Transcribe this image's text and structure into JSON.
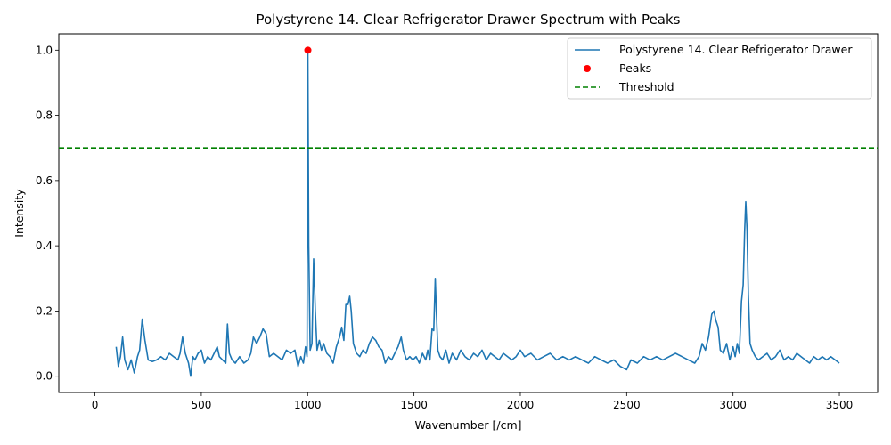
{
  "chart_data": {
    "type": "line",
    "title": "Polystyrene 14. Clear Refrigerator Drawer Spectrum with Peaks",
    "xlabel": "Wavenumber [/cm]",
    "ylabel": "Intensity",
    "xlim": [
      -170,
      3680
    ],
    "ylim": [
      -0.05,
      1.05
    ],
    "xticks": [
      0,
      500,
      1000,
      1500,
      2000,
      2500,
      3000,
      3500
    ],
    "yticks": [
      0.0,
      0.2,
      0.4,
      0.6,
      0.8,
      1.0
    ],
    "xtick_labels": [
      "0",
      "500",
      "1000",
      "1500",
      "2000",
      "2500",
      "3000",
      "3500"
    ],
    "ytick_labels": [
      "0.0",
      "0.2",
      "0.4",
      "0.6",
      "0.8",
      "1.0"
    ],
    "grid": false,
    "legend_position": "top-right",
    "colors": {
      "spectrum": "#1f77b4",
      "peaks": "#ff0000",
      "threshold": "#008000"
    },
    "series": [
      {
        "name": "Polystyrene 14. Clear Refrigerator Drawer",
        "kind": "line",
        "x": [
          100,
          110,
          120,
          130,
          140,
          155,
          170,
          185,
          200,
          210,
          222,
          235,
          250,
          270,
          290,
          310,
          330,
          350,
          370,
          390,
          400,
          412,
          425,
          440,
          450,
          460,
          470,
          485,
          500,
          515,
          530,
          545,
          560,
          575,
          585,
          600,
          615,
          623,
          632,
          645,
          660,
          680,
          700,
          720,
          733,
          745,
          760,
          775,
          790,
          805,
          820,
          840,
          860,
          880,
          900,
          920,
          940,
          955,
          968,
          980,
          990,
          997,
          1001,
          1005,
          1012,
          1020,
          1028,
          1036,
          1044,
          1055,
          1065,
          1075,
          1090,
          1105,
          1120,
          1135,
          1150,
          1160,
          1170,
          1180,
          1190,
          1198,
          1205,
          1215,
          1230,
          1245,
          1260,
          1275,
          1290,
          1305,
          1320,
          1335,
          1350,
          1365,
          1380,
          1395,
          1410,
          1425,
          1440,
          1450,
          1465,
          1480,
          1495,
          1510,
          1525,
          1540,
          1555,
          1565,
          1575,
          1585,
          1593,
          1600,
          1605,
          1612,
          1622,
          1635,
          1650,
          1665,
          1680,
          1700,
          1720,
          1740,
          1760,
          1780,
          1800,
          1820,
          1840,
          1860,
          1880,
          1900,
          1920,
          1940,
          1960,
          1980,
          2000,
          2020,
          2050,
          2080,
          2110,
          2140,
          2170,
          2200,
          2230,
          2260,
          2290,
          2320,
          2350,
          2380,
          2410,
          2440,
          2470,
          2500,
          2520,
          2550,
          2580,
          2610,
          2640,
          2670,
          2700,
          2730,
          2760,
          2790,
          2820,
          2840,
          2855,
          2870,
          2885,
          2900,
          2910,
          2920,
          2930,
          2940,
          2955,
          2970,
          2985,
          3000,
          3010,
          3020,
          3030,
          3040,
          3048,
          3055,
          3060,
          3066,
          3072,
          3080,
          3090,
          3105,
          3120,
          3140,
          3160,
          3180,
          3200,
          3220,
          3240,
          3260,
          3280,
          3300,
          3320,
          3340,
          3360,
          3380,
          3400,
          3420,
          3440,
          3460,
          3480,
          3500
        ],
        "y": [
          0.09,
          0.03,
          0.06,
          0.12,
          0.05,
          0.02,
          0.05,
          0.01,
          0.06,
          0.08,
          0.175,
          0.11,
          0.05,
          0.045,
          0.05,
          0.06,
          0.05,
          0.07,
          0.06,
          0.05,
          0.07,
          0.12,
          0.07,
          0.04,
          0.0,
          0.06,
          0.05,
          0.07,
          0.08,
          0.04,
          0.06,
          0.05,
          0.07,
          0.09,
          0.06,
          0.05,
          0.04,
          0.16,
          0.07,
          0.05,
          0.04,
          0.06,
          0.04,
          0.05,
          0.07,
          0.12,
          0.1,
          0.12,
          0.145,
          0.13,
          0.06,
          0.07,
          0.06,
          0.05,
          0.08,
          0.07,
          0.08,
          0.03,
          0.06,
          0.04,
          0.09,
          0.06,
          1.0,
          0.4,
          0.08,
          0.1,
          0.36,
          0.2,
          0.08,
          0.11,
          0.08,
          0.1,
          0.07,
          0.06,
          0.04,
          0.09,
          0.12,
          0.15,
          0.11,
          0.22,
          0.22,
          0.245,
          0.2,
          0.1,
          0.07,
          0.06,
          0.08,
          0.07,
          0.1,
          0.12,
          0.11,
          0.09,
          0.08,
          0.04,
          0.06,
          0.05,
          0.07,
          0.09,
          0.12,
          0.08,
          0.05,
          0.06,
          0.05,
          0.06,
          0.04,
          0.07,
          0.05,
          0.08,
          0.05,
          0.145,
          0.14,
          0.3,
          0.2,
          0.08,
          0.06,
          0.05,
          0.08,
          0.04,
          0.07,
          0.05,
          0.08,
          0.06,
          0.05,
          0.07,
          0.06,
          0.08,
          0.05,
          0.07,
          0.06,
          0.05,
          0.07,
          0.06,
          0.05,
          0.06,
          0.08,
          0.06,
          0.07,
          0.05,
          0.06,
          0.07,
          0.05,
          0.06,
          0.05,
          0.06,
          0.05,
          0.04,
          0.06,
          0.05,
          0.04,
          0.05,
          0.03,
          0.02,
          0.05,
          0.04,
          0.06,
          0.05,
          0.06,
          0.05,
          0.06,
          0.07,
          0.06,
          0.05,
          0.04,
          0.06,
          0.1,
          0.08,
          0.12,
          0.19,
          0.2,
          0.17,
          0.15,
          0.08,
          0.07,
          0.1,
          0.05,
          0.09,
          0.06,
          0.1,
          0.07,
          0.23,
          0.28,
          0.45,
          0.535,
          0.45,
          0.25,
          0.1,
          0.08,
          0.06,
          0.05,
          0.06,
          0.07,
          0.05,
          0.06,
          0.08,
          0.05,
          0.06,
          0.05,
          0.07,
          0.06,
          0.05,
          0.04,
          0.06,
          0.05,
          0.06,
          0.05,
          0.06,
          0.05,
          0.04
        ]
      },
      {
        "name": "Peaks",
        "kind": "scatter",
        "x": [
          1001
        ],
        "y": [
          1.0
        ]
      },
      {
        "name": "Threshold",
        "kind": "hline",
        "y": 0.7
      }
    ]
  }
}
